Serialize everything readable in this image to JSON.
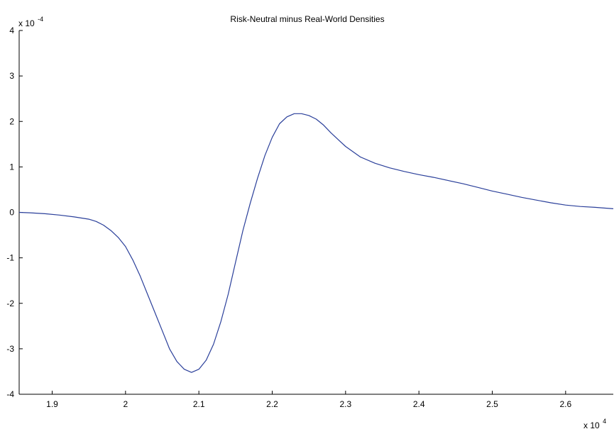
{
  "chart_data": {
    "type": "line",
    "title": "Risk-Neutral minus Real-World Densities",
    "xlabel": "",
    "ylabel": "",
    "xlim": [
      18550,
      26650
    ],
    "ylim": [
      -4,
      4
    ],
    "x_ticks": [
      {
        "value": 19000,
        "label": "1.9"
      },
      {
        "value": 20000,
        "label": "2"
      },
      {
        "value": 21000,
        "label": "2.1"
      },
      {
        "value": 22000,
        "label": "2.2"
      },
      {
        "value": 23000,
        "label": "2.3"
      },
      {
        "value": 24000,
        "label": "2.4"
      },
      {
        "value": 25000,
        "label": "2.5"
      },
      {
        "value": 26000,
        "label": "2.6"
      }
    ],
    "y_ticks": [
      {
        "value": -4,
        "label": "-4"
      },
      {
        "value": -3,
        "label": "-3"
      },
      {
        "value": -2,
        "label": "-2"
      },
      {
        "value": -1,
        "label": "-1"
      },
      {
        "value": 0,
        "label": "0"
      },
      {
        "value": 1,
        "label": "1"
      },
      {
        "value": 2,
        "label": "2"
      },
      {
        "value": 3,
        "label": "3"
      },
      {
        "value": 4,
        "label": "4"
      }
    ],
    "x_multiplier": {
      "base": "x 10",
      "exponent": "4"
    },
    "y_multiplier": {
      "base": "x 10",
      "exponent": "-4"
    },
    "grid": false,
    "series": [
      {
        "color": "#2a3f9a",
        "x": [
          18550,
          18700,
          18900,
          19100,
          19300,
          19500,
          19600,
          19700,
          19800,
          19900,
          20000,
          20100,
          20200,
          20300,
          20400,
          20500,
          20600,
          20700,
          20800,
          20900,
          21000,
          21100,
          21200,
          21300,
          21400,
          21500,
          21600,
          21700,
          21800,
          21900,
          22000,
          22100,
          22200,
          22300,
          22400,
          22500,
          22600,
          22700,
          22800,
          22900,
          23000,
          23200,
          23400,
          23600,
          23800,
          24000,
          24200,
          24400,
          24600,
          24800,
          25000,
          25200,
          25400,
          25600,
          25800,
          26000,
          26200,
          26400,
          26650
        ],
        "y": [
          0.0,
          -0.01,
          -0.03,
          -0.06,
          -0.1,
          -0.15,
          -0.2,
          -0.28,
          -0.4,
          -0.55,
          -0.75,
          -1.05,
          -1.4,
          -1.8,
          -2.2,
          -2.6,
          -3.0,
          -3.28,
          -3.45,
          -3.52,
          -3.45,
          -3.25,
          -2.9,
          -2.4,
          -1.8,
          -1.1,
          -0.4,
          0.2,
          0.75,
          1.25,
          1.65,
          1.95,
          2.1,
          2.17,
          2.17,
          2.13,
          2.05,
          1.92,
          1.75,
          1.6,
          1.45,
          1.22,
          1.08,
          0.98,
          0.9,
          0.83,
          0.77,
          0.7,
          0.63,
          0.55,
          0.47,
          0.4,
          0.33,
          0.27,
          0.21,
          0.16,
          0.13,
          0.11,
          0.08
        ]
      }
    ]
  }
}
